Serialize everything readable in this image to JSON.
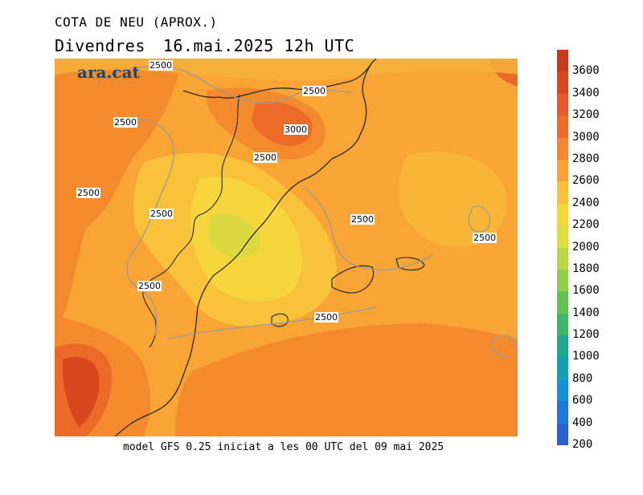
{
  "title": {
    "line1": "COTA DE NEU (APROX.)",
    "day": "Divendres",
    "datetime": "16.mai.2025 12h UTC"
  },
  "footer": "model GFS 0.25 iniciat a les 00 UTC del 09 mai 2025",
  "logo": "ara.cat",
  "contour_label": "2500",
  "peak_label": "3000",
  "legend": {
    "labels": [
      "3600",
      "3400",
      "3200",
      "3000",
      "2800",
      "2600",
      "2400",
      "2200",
      "2000",
      "1800",
      "1600",
      "1400",
      "1200",
      "1000",
      "800",
      "600",
      "400",
      "200"
    ],
    "colors": [
      "#c83a1e",
      "#d9461f",
      "#e8582a",
      "#f26a2a",
      "#f78431",
      "#faa237",
      "#f8c13a",
      "#f5d93b",
      "#dcdd3e",
      "#b8d843",
      "#8ecf4c",
      "#62c253",
      "#3eb56a",
      "#21a88e",
      "#14a0b3",
      "#158fd6",
      "#1f76db",
      "#2c5fd0"
    ]
  },
  "colors": {
    "base": "#f8a536",
    "warm": "#f38a2e",
    "hot": "#ec6a28",
    "hottest": "#d9471f",
    "cool": "#f9c23b",
    "coolest": "#f6d63c",
    "green": "#dcd940"
  }
}
